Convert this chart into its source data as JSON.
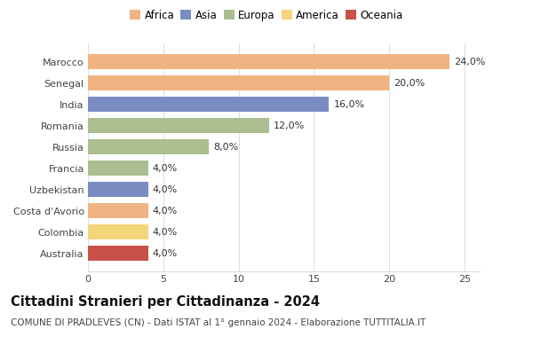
{
  "countries": [
    "Marocco",
    "Senegal",
    "India",
    "Romania",
    "Russia",
    "Francia",
    "Uzbekistan",
    "Costa d'Avorio",
    "Colombia",
    "Australia"
  ],
  "values": [
    24.0,
    20.0,
    16.0,
    12.0,
    8.0,
    4.0,
    4.0,
    4.0,
    4.0,
    4.0
  ],
  "labels": [
    "24,0%",
    "20,0%",
    "16,0%",
    "12,0%",
    "8,0%",
    "4,0%",
    "4,0%",
    "4,0%",
    "4,0%",
    "4,0%"
  ],
  "colors": [
    "#F0B482",
    "#F0B482",
    "#7A8DC2",
    "#ABBE8F",
    "#ABBE8F",
    "#ABBE8F",
    "#7A8DC2",
    "#F0B482",
    "#F5D57A",
    "#C8524A"
  ],
  "continent_labels": [
    "Africa",
    "Asia",
    "Europa",
    "America",
    "Oceania"
  ],
  "continent_colors": [
    "#F0B482",
    "#7A8DC2",
    "#ABBE8F",
    "#F5D57A",
    "#C8524A"
  ],
  "title": "Cittadini Stranieri per Cittadinanza - 2024",
  "subtitle": "COMUNE DI PRADLEVES (CN) - Dati ISTAT al 1° gennaio 2024 - Elaborazione TUTTITALIA.IT",
  "xlim": [
    0,
    26
  ],
  "xticks": [
    0,
    5,
    10,
    15,
    20,
    25
  ],
  "background_color": "#ffffff",
  "grid_color": "#dddddd",
  "bar_height": 0.72,
  "title_fontsize": 10.5,
  "subtitle_fontsize": 7.5,
  "label_fontsize": 8,
  "tick_fontsize": 8,
  "legend_fontsize": 8.5
}
